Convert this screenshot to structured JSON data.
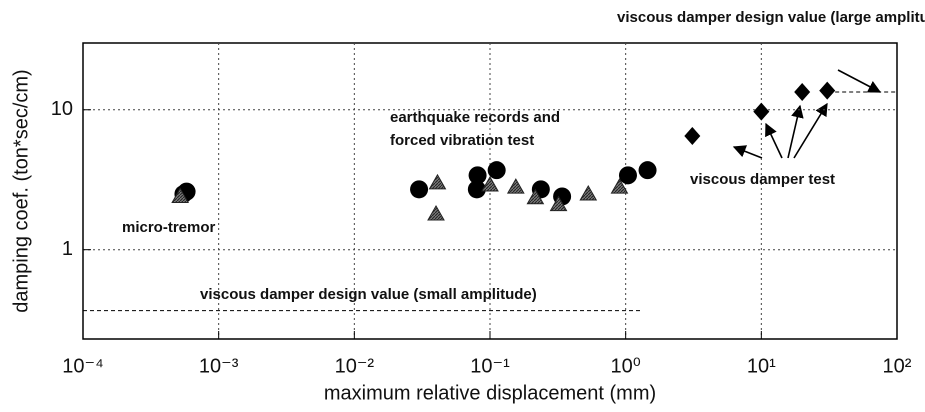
{
  "chart_data": {
    "type": "scatter",
    "xlabel": "maximum relative displacement (mm)",
    "ylabel": "damping coef. (ton*sec/cm)",
    "xscale": "log",
    "yscale": "log",
    "grid": true,
    "xlim": [
      0.0001,
      100
    ],
    "ylim": [
      0.23,
      30
    ],
    "xticks": [
      {
        "value": 0.0001,
        "label": "10⁻⁴"
      },
      {
        "value": 0.001,
        "label": "10⁻³"
      },
      {
        "value": 0.01,
        "label": "10⁻²"
      },
      {
        "value": 0.1,
        "label": "10⁻¹"
      },
      {
        "value": 1,
        "label": "10⁰"
      },
      {
        "value": 10,
        "label": "10¹"
      },
      {
        "value": 100,
        "label": "10²"
      }
    ],
    "yticks": [
      1,
      10
    ],
    "series": [
      {
        "marker": "circle",
        "color": "#000000",
        "x": [
          0.00058,
          0.00055,
          0.03,
          0.081,
          0.08,
          0.112,
          0.237,
          0.34,
          1.04,
          1.45
        ],
        "values": [
          2.6,
          2.5,
          2.7,
          3.4,
          2.7,
          3.7,
          2.7,
          2.4,
          3.4,
          3.7
        ]
      },
      {
        "marker": "triangle",
        "color": "#555555",
        "x": [
          0.00052,
          0.041,
          0.04,
          0.1,
          0.155,
          0.216,
          0.32,
          0.53,
          0.9
        ],
        "values": [
          2.4,
          3.0,
          1.8,
          2.9,
          2.8,
          2.35,
          2.1,
          2.5,
          2.8
        ]
      },
      {
        "marker": "diamond",
        "color": "#000000",
        "x": [
          3.1,
          10,
          20,
          30.6
        ],
        "values": [
          6.5,
          9.7,
          13.4,
          13.7
        ]
      }
    ],
    "reference_lines": [
      {
        "value": 0.367,
        "x": [
          0.0001,
          1.3
        ]
      },
      {
        "value": 13.4,
        "x": [
          35,
          100
        ]
      }
    ],
    "annotations": [
      "viscous damper design value (large amplitude)",
      "earthquake records and",
      "forced vibration test",
      "micro-tremor",
      "viscous damper test",
      "viscous damper design value (small amplitude)"
    ]
  }
}
